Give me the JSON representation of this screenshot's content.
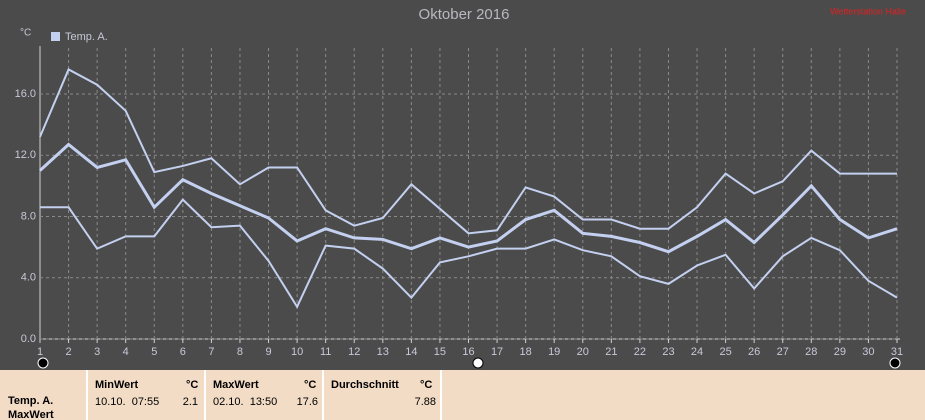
{
  "chart_data": {
    "type": "line",
    "title": "Oktober 2016",
    "y_unit": "°C",
    "station": "Wetterstation Halle",
    "x": [
      1,
      2,
      3,
      4,
      5,
      6,
      7,
      8,
      9,
      10,
      11,
      12,
      13,
      14,
      15,
      16,
      17,
      18,
      19,
      20,
      21,
      22,
      23,
      24,
      25,
      26,
      27,
      28,
      29,
      30,
      31
    ],
    "xlim": [
      1,
      31
    ],
    "ylim": [
      0,
      19
    ],
    "yticks": [
      {
        "value": 0,
        "label": "0.0"
      },
      {
        "value": 4,
        "label": "4.0"
      },
      {
        "value": 8,
        "label": "8.0"
      },
      {
        "value": 12,
        "label": "12.0"
      },
      {
        "value": 16,
        "label": "16.0"
      }
    ],
    "grid": true,
    "series": [
      {
        "name": "Temp. A.",
        "color": "#c4d0f0",
        "max": [
          13.2,
          17.6,
          16.6,
          14.9,
          10.9,
          11.3,
          11.8,
          10.1,
          11.2,
          11.2,
          8.4,
          7.4,
          7.9,
          10.1,
          8.5,
          6.9,
          7.1,
          9.9,
          9.3,
          7.8,
          7.8,
          7.2,
          7.2,
          8.6,
          10.8,
          9.5,
          10.3,
          12.3,
          10.8,
          10.8,
          10.8
        ],
        "values": [
          11.0,
          12.7,
          11.2,
          11.7,
          8.6,
          10.4,
          9.5,
          8.7,
          7.9,
          6.4,
          7.2,
          6.6,
          6.5,
          5.9,
          6.6,
          6.0,
          6.4,
          7.8,
          8.4,
          6.9,
          6.7,
          6.3,
          5.7,
          6.7,
          7.8,
          6.3,
          8.1,
          10.0,
          7.8,
          6.6,
          7.2
        ],
        "min": [
          8.6,
          8.6,
          5.9,
          6.7,
          6.7,
          9.1,
          7.3,
          7.4,
          5.1,
          2.1,
          6.1,
          5.9,
          4.6,
          2.7,
          5.0,
          5.4,
          5.9,
          5.9,
          6.5,
          5.8,
          5.4,
          4.1,
          3.6,
          4.8,
          5.5,
          3.3,
          5.4,
          6.6,
          5.8,
          3.8,
          2.7
        ]
      }
    ]
  },
  "summary": {
    "row_labels": [
      "Temp. A.",
      "MaxWert"
    ],
    "columns": [
      {
        "header": "MinWert",
        "unit": "°C",
        "time": "10.10.  07:55",
        "value": "2.1"
      },
      {
        "header": "MaxWert",
        "unit": "°C",
        "time": "02.10.  13:50",
        "value": "17.6"
      },
      {
        "header": "Durchschnitt",
        "unit": "°C",
        "value": "7.88"
      }
    ]
  }
}
